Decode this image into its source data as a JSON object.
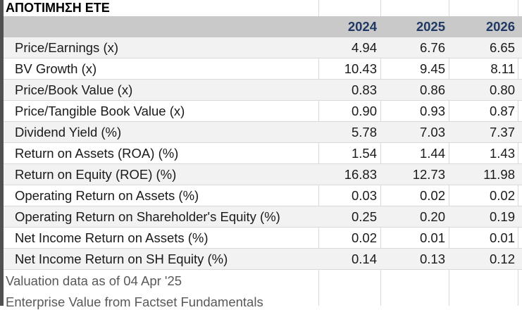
{
  "title": "ΑΠΟΤΙΜΗΣΗ ΕΤΕ",
  "years": [
    "2024",
    "2025",
    "2026"
  ],
  "rows": [
    {
      "label": "Price/Earnings (x)",
      "values": [
        "4.94",
        "6.76",
        "6.65"
      ]
    },
    {
      "label": "BV Growth (x)",
      "values": [
        "10.43",
        "9.45",
        "8.11"
      ]
    },
    {
      "label": "Price/Book Value (x)",
      "values": [
        "0.83",
        "0.86",
        "0.80"
      ]
    },
    {
      "label": "Price/Tangible Book Value (x)",
      "values": [
        "0.90",
        "0.93",
        "0.87"
      ]
    },
    {
      "label": "Dividend Yield (%)",
      "values": [
        "5.78",
        "7.03",
        "7.37"
      ]
    },
    {
      "label": "Return on Assets (ROA) (%)",
      "values": [
        "1.54",
        "1.44",
        "1.43"
      ]
    },
    {
      "label": "Return on Equity (ROE) (%)",
      "values": [
        "16.83",
        "12.73",
        "11.98"
      ]
    },
    {
      "label": "Operating Return on Assets (%)",
      "values": [
        "0.03",
        "0.02",
        "0.02"
      ]
    },
    {
      "label": "Operating Return on Shareholder's Equity (%)",
      "values": [
        "0.25",
        "0.20",
        "0.19"
      ]
    },
    {
      "label": "Net Income Return on Assets (%)",
      "values": [
        "0.02",
        "0.01",
        "0.01"
      ]
    },
    {
      "label": "Net Income Return on SH Equity (%)",
      "values": [
        "0.14",
        "0.13",
        "0.12"
      ]
    }
  ],
  "notes": {
    "valuation_date": "Valuation data as of 04 Apr '25",
    "source": "Enterprise Value from Factset Fundamentals"
  }
}
